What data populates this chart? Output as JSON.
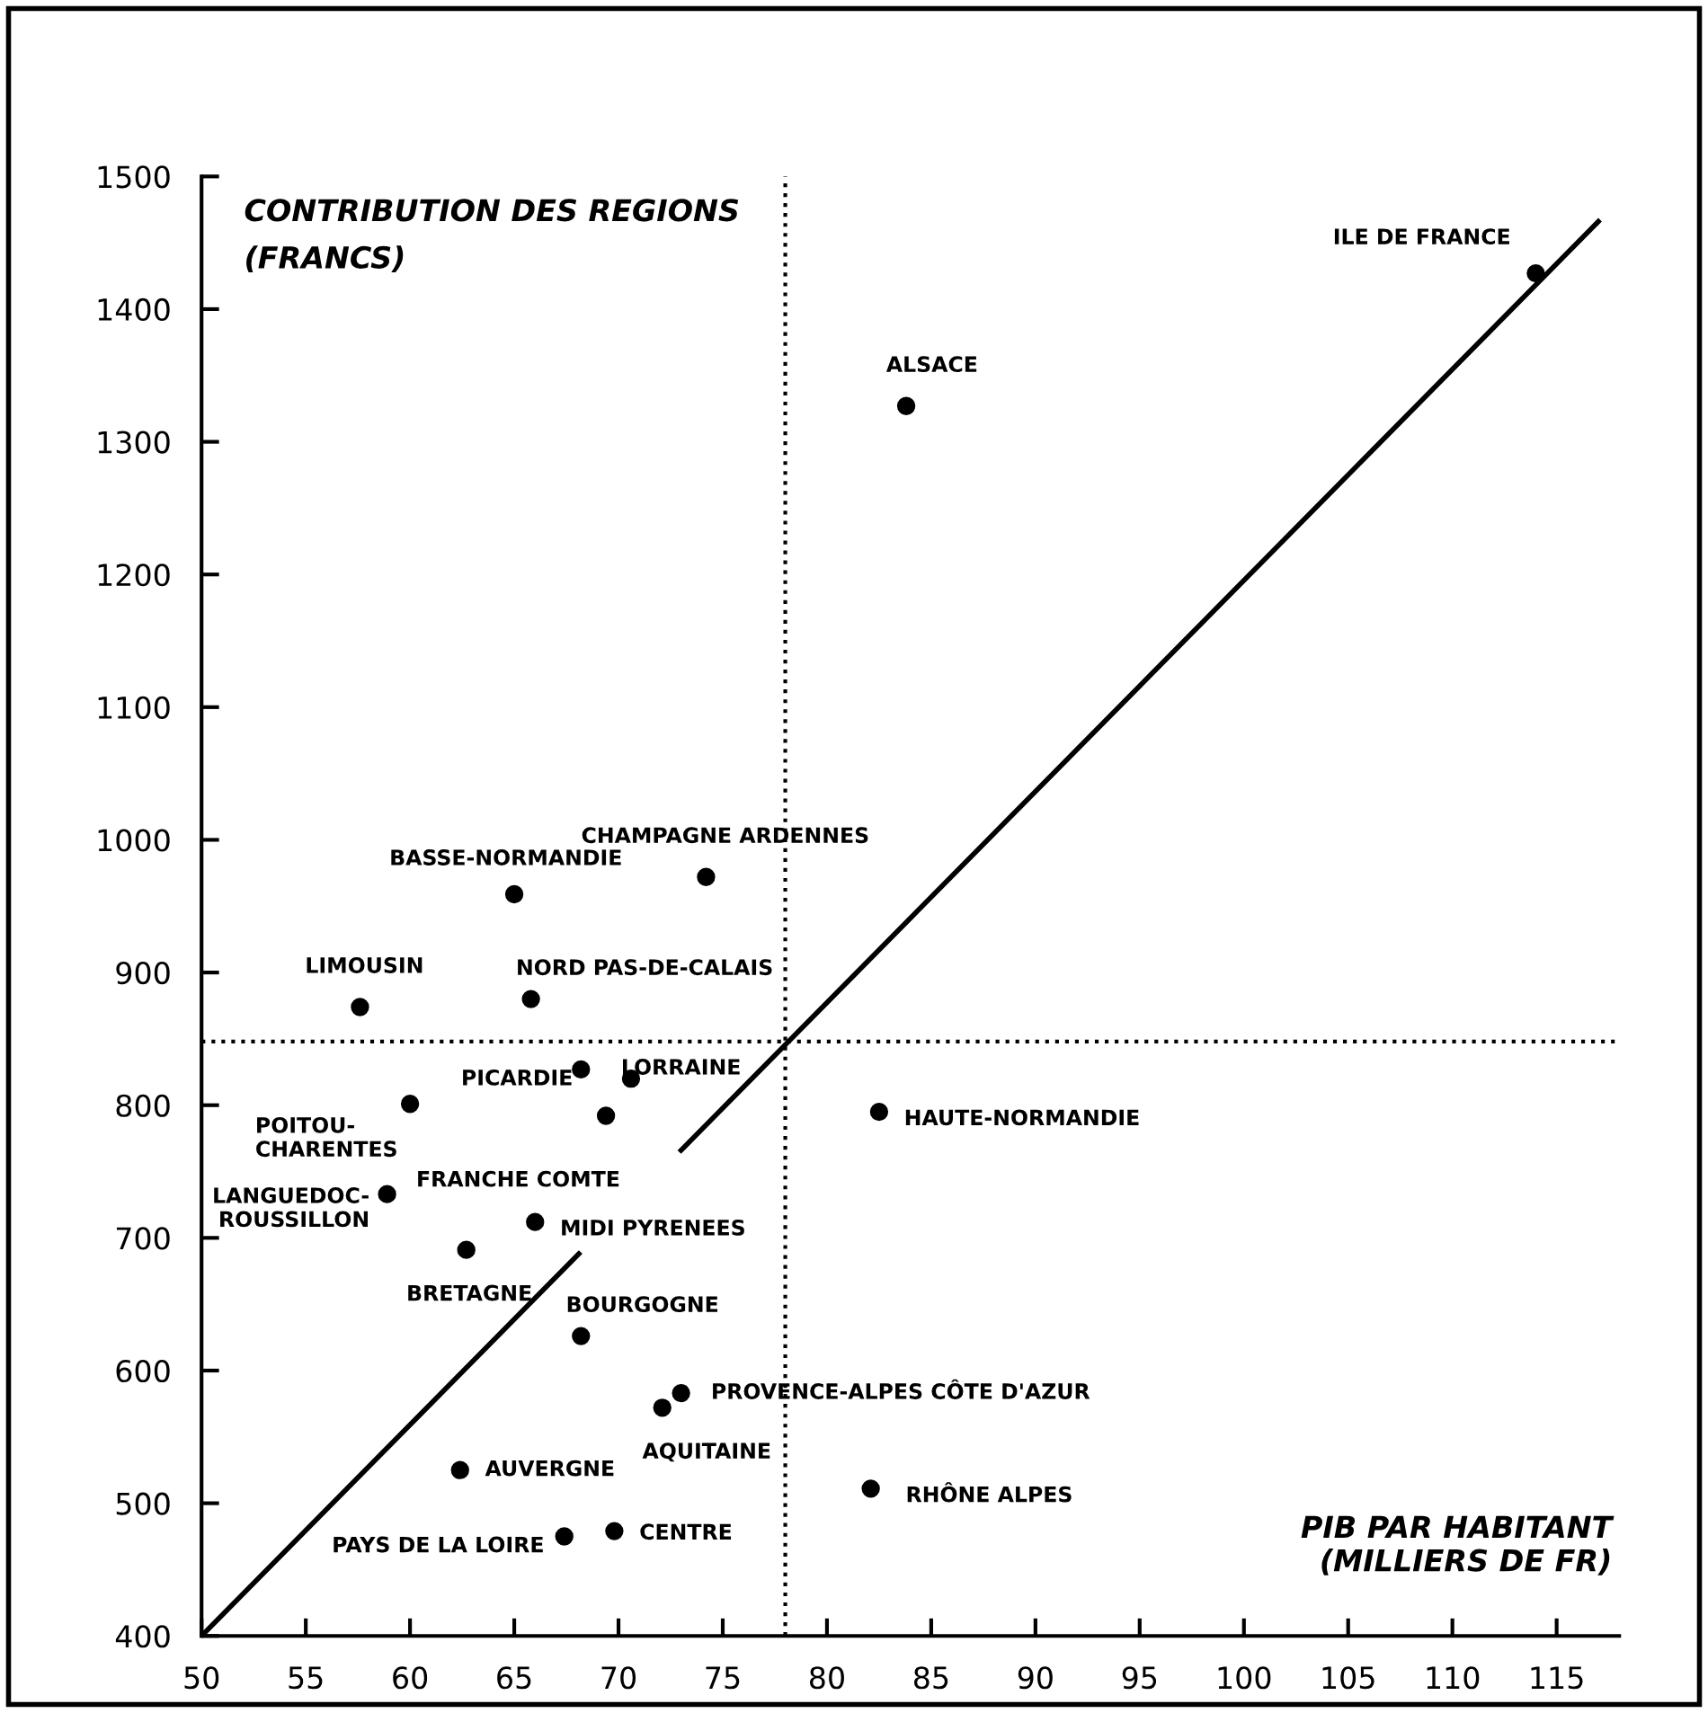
{
  "chart_data": {
    "type": "scatter",
    "xlabel": "PIB PAR HABITANT\n(MILLIERS DE FR)",
    "ylabel": "CONTRIBUTION DES REGIONS\n(FRANCS)",
    "xlim": [
      50,
      118
    ],
    "ylim": [
      400,
      1500
    ],
    "xticks": [
      50,
      55,
      60,
      65,
      70,
      75,
      80,
      85,
      90,
      95,
      100,
      105,
      110,
      115
    ],
    "yticks": [
      400,
      500,
      600,
      700,
      800,
      900,
      1000,
      1100,
      1200,
      1300,
      1400,
      1500
    ],
    "grid": false,
    "marker": "circle",
    "series": [
      {
        "color": "#000000",
        "x": [
          114,
          83.8,
          65.0,
          74.2,
          57.6,
          65.8,
          68.2,
          70.6,
          60.0,
          69.4,
          82.5,
          58.9,
          66.0,
          62.7,
          68.2,
          73.0,
          72.1,
          62.4,
          82.1,
          67.4,
          69.8
        ],
        "values": [
          1427,
          1327,
          959,
          972,
          874,
          880,
          827,
          820,
          801,
          792,
          795,
          733,
          712,
          691,
          626,
          583,
          572,
          525,
          511,
          475,
          479
        ]
      },
      {
        "type": "line",
        "color": "#000000",
        "line_style": "solid",
        "marker": "none",
        "x": [
          50,
          68.1,
          70,
          73,
          117
        ],
        "values": [
          400,
          688,
          null,
          766,
          1466
        ]
      }
    ],
    "ref_lines": [
      {
        "axis": "y",
        "value": 848,
        "line_style": "dotted",
        "color": "#000000"
      },
      {
        "axis": "x",
        "value": 78,
        "line_style": "dotted",
        "color": "#000000"
      }
    ],
    "annotations": [
      {
        "text": "ILE DE FRANCE",
        "x": 114,
        "y": 1427
      },
      {
        "text": "ALSACE",
        "x": 83.8,
        "y": 1327
      },
      {
        "text": "BASSE-NORMANDIE",
        "x": 65.0,
        "y": 959
      },
      {
        "text": "CHAMPAGNE ARDENNES",
        "x": 74.2,
        "y": 972
      },
      {
        "text": "LIMOUSIN",
        "x": 57.6,
        "y": 874
      },
      {
        "text": "NORD PAS-DE-CALAIS",
        "x": 65.8,
        "y": 880
      },
      {
        "text": "PICARDIE",
        "x": 68.2,
        "y": 827
      },
      {
        "text": "LORRAINE",
        "x": 70.6,
        "y": 820
      },
      {
        "text": "POITOU-\nCHARENTES",
        "x": 60.0,
        "y": 801
      },
      {
        "text": "FRANCHE COMTE",
        "x": 69.4,
        "y": 792
      },
      {
        "text": "HAUTE-NORMANDIE",
        "x": 82.5,
        "y": 795
      },
      {
        "text": "LANGUEDOC-\nROUSSILLON",
        "x": 58.9,
        "y": 733
      },
      {
        "text": "MIDI PYRENEES",
        "x": 66.0,
        "y": 712
      },
      {
        "text": "BRETAGNE",
        "x": 62.7,
        "y": 691
      },
      {
        "text": "BOURGOGNE",
        "x": 68.2,
        "y": 626
      },
      {
        "text": "PROVENCE-ALPES CÔTE D'AZUR",
        "x": 73.0,
        "y": 583
      },
      {
        "text": "AQUITAINE",
        "x": 72.1,
        "y": 572
      },
      {
        "text": "AUVERGNE",
        "x": 62.4,
        "y": 525
      },
      {
        "text": "RHÔNE ALPES",
        "x": 82.1,
        "y": 511
      },
      {
        "text": "PAYS DE LA LOIRE",
        "x": 67.4,
        "y": 475
      },
      {
        "text": "CENTRE",
        "x": 69.8,
        "y": 479
      }
    ]
  }
}
